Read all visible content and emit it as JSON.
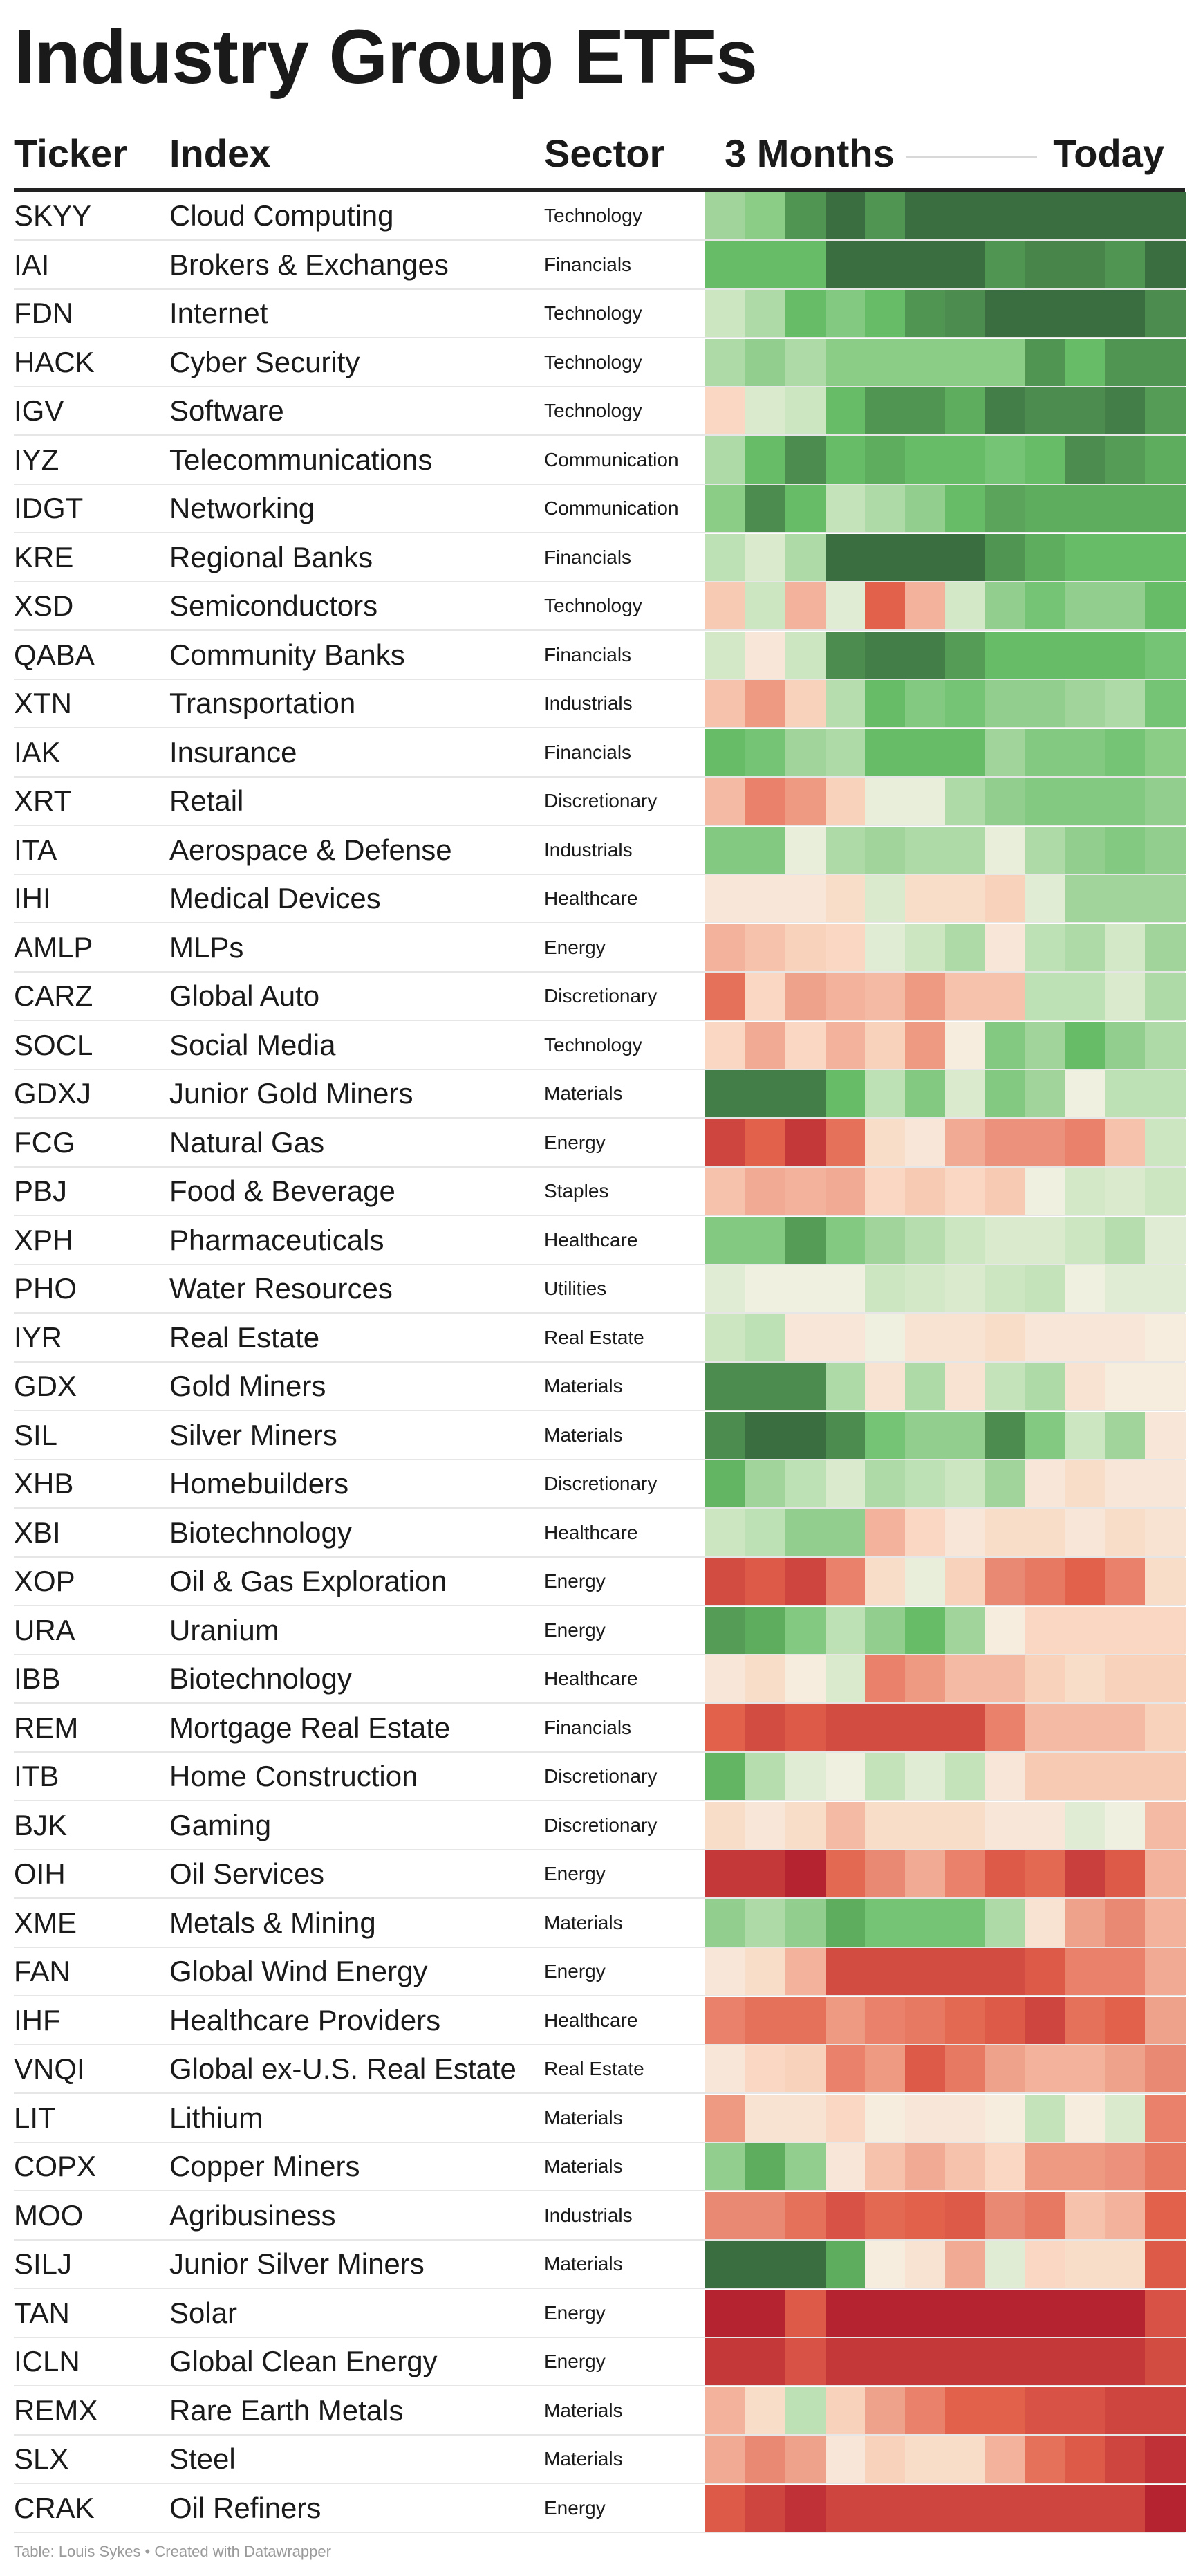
{
  "title": "Industry Group ETFs",
  "headers": {
    "ticker": "Ticker",
    "index": "Index",
    "sector": "Sector",
    "period_start": "3 Months",
    "period_end": "Today"
  },
  "note": "Table: Louis Sykes • Created with Datawrapper",
  "color_scale": {
    "strong_green": "#3a6d3f",
    "green": "#67bd67",
    "light_green": "#cbe6c1",
    "neutral": "#f7f2e6",
    "light_red": "#f9d2bb",
    "red": "#e2614b",
    "strong_red": "#b01c2e"
  },
  "chart_data": {
    "type": "heatmap",
    "title": "Industry Group ETFs",
    "columns": 12,
    "value_scale": "diverging: -3 (strong red) to +3 (strong green); values estimated from cell shading",
    "rows": [
      {
        "ticker": "SKYY",
        "index": "Cloud Computing",
        "sector": "Technology",
        "values": [
          1.2,
          1.5,
          2.5,
          3,
          2.5,
          3,
          3,
          3,
          3,
          3,
          3,
          3
        ]
      },
      {
        "ticker": "IAI",
        "index": "Brokers & Exchanges",
        "sector": "Financials",
        "values": [
          2,
          2,
          2,
          3,
          3,
          3,
          3,
          2.5,
          2.7,
          2.7,
          2.5,
          3
        ]
      },
      {
        "ticker": "FDN",
        "index": "Internet",
        "sector": "Technology",
        "values": [
          0.6,
          1,
          2,
          1.6,
          2,
          2.5,
          2.6,
          3,
          3,
          3,
          3,
          2.6
        ]
      },
      {
        "ticker": "HACK",
        "index": "Cyber Security",
        "sector": "Technology",
        "values": [
          1,
          1.4,
          1,
          1.5,
          1.5,
          1.5,
          1.5,
          1.5,
          2.5,
          2,
          2.5,
          2.5
        ]
      },
      {
        "ticker": "IGV",
        "index": "Software",
        "sector": "Technology",
        "values": [
          -0.5,
          0.4,
          0.6,
          2,
          2.5,
          2.5,
          2.2,
          2.8,
          2.6,
          2.6,
          2.8,
          2.4
        ]
      },
      {
        "ticker": "IYZ",
        "index": "Telecommunications",
        "sector": "Communication",
        "values": [
          1,
          2,
          2.6,
          2,
          2.2,
          2,
          2,
          1.8,
          2,
          2.6,
          2.4,
          2.2
        ]
      },
      {
        "ticker": "IDGT",
        "index": "Networking",
        "sector": "Communication",
        "values": [
          1.5,
          2.6,
          2,
          0.7,
          1,
          1.4,
          2,
          2.3,
          2.2,
          2.2,
          2.2,
          2.2
        ]
      },
      {
        "ticker": "KRE",
        "index": "Regional Banks",
        "sector": "Financials",
        "values": [
          0.8,
          0.4,
          1,
          3,
          3,
          3,
          3,
          2.5,
          2.2,
          2,
          2,
          2
        ]
      },
      {
        "ticker": "XSD",
        "index": "Semiconductors",
        "sector": "Technology",
        "values": [
          -0.7,
          0.6,
          -1,
          0.3,
          -2,
          -1,
          0.5,
          1.4,
          1.8,
          1.4,
          1.4,
          2
        ]
      },
      {
        "ticker": "QABA",
        "index": "Community Banks",
        "sector": "Financials",
        "values": [
          0.5,
          -0.2,
          0.6,
          2.6,
          2.8,
          2.8,
          2.4,
          2,
          2,
          2,
          2,
          1.8
        ]
      },
      {
        "ticker": "XTN",
        "index": "Transportation",
        "sector": "Industrials",
        "values": [
          -0.8,
          -1.3,
          -0.6,
          0.9,
          2,
          1.6,
          1.8,
          1.4,
          1.4,
          1.2,
          1,
          1.8
        ]
      },
      {
        "ticker": "IAK",
        "index": "Insurance",
        "sector": "Financials",
        "values": [
          2,
          1.8,
          1.2,
          1,
          2,
          2,
          2,
          1.2,
          1.6,
          1.6,
          1.8,
          1.5
        ]
      },
      {
        "ticker": "XRT",
        "index": "Retail",
        "sector": "Discretionary",
        "values": [
          -0.9,
          -1.6,
          -1.3,
          -0.6,
          0.2,
          0.2,
          1,
          1.4,
          1.6,
          1.6,
          1.6,
          1.4
        ]
      },
      {
        "ticker": "ITA",
        "index": "Aerospace & Defense",
        "sector": "Industrials",
        "values": [
          1.6,
          1.6,
          0.2,
          1,
          1.2,
          1,
          1,
          0.2,
          1,
          1.4,
          1.6,
          1.4
        ]
      },
      {
        "ticker": "IHI",
        "index": "Medical Devices",
        "sector": "Healthcare",
        "values": [
          -0.2,
          -0.2,
          -0.2,
          -0.4,
          0.4,
          -0.4,
          -0.4,
          -0.6,
          0.3,
          1.2,
          1.2,
          1.2
        ]
      },
      {
        "ticker": "AMLP",
        "index": "MLPs",
        "sector": "Energy",
        "values": [
          -1,
          -0.8,
          -0.6,
          -0.5,
          0.3,
          0.6,
          1,
          -0.2,
          0.8,
          1,
          0.5,
          1.2
        ]
      },
      {
        "ticker": "CARZ",
        "index": "Global Auto",
        "sector": "Discretionary",
        "values": [
          -1.8,
          -0.5,
          -1.2,
          -1,
          -0.9,
          -1.3,
          -0.8,
          -0.8,
          0.8,
          0.8,
          0.4,
          1
        ]
      },
      {
        "ticker": "SOCL",
        "index": "Social Media",
        "sector": "Technology",
        "values": [
          -0.5,
          -1.1,
          -0.5,
          -1,
          -0.6,
          -1.3,
          -0.1,
          1.6,
          1.2,
          2,
          1.4,
          1
        ]
      },
      {
        "ticker": "GDXJ",
        "index": "Junior Gold Miners",
        "sector": "Materials",
        "values": [
          2.8,
          2.8,
          2.8,
          2,
          0.8,
          1.6,
          0.4,
          1.6,
          1.2,
          0.1,
          0.8,
          0.8
        ]
      },
      {
        "ticker": "FCG",
        "index": "Natural Gas",
        "sector": "Energy",
        "values": [
          -2.4,
          -2,
          -2.6,
          -1.8,
          -0.4,
          -0.2,
          -1.1,
          -1.4,
          -1.4,
          -1.6,
          -0.8,
          0.6
        ]
      },
      {
        "ticker": "PBJ",
        "index": "Food & Beverage",
        "sector": "Staples",
        "values": [
          -0.8,
          -1.1,
          -1,
          -1.1,
          -0.5,
          -0.7,
          -0.5,
          -0.7,
          0.1,
          0.5,
          0.4,
          0.6
        ]
      },
      {
        "ticker": "XPH",
        "index": "Pharmaceuticals",
        "sector": "Healthcare",
        "values": [
          1.6,
          1.6,
          2.4,
          1.6,
          1.2,
          0.9,
          0.6,
          0.4,
          0.4,
          0.6,
          0.9,
          0.3
        ]
      },
      {
        "ticker": "PHO",
        "index": "Water Resources",
        "sector": "Utilities",
        "values": [
          0.3,
          0.1,
          0.1,
          0.1,
          0.6,
          0.5,
          0.4,
          0.6,
          0.7,
          0.1,
          0.3,
          0.3
        ]
      },
      {
        "ticker": "IYR",
        "index": "Real Estate",
        "sector": "Real Estate",
        "values": [
          0.6,
          0.8,
          -0.2,
          -0.2,
          0.1,
          -0.3,
          -0.3,
          -0.4,
          -0.2,
          -0.2,
          -0.2,
          -0.1
        ]
      },
      {
        "ticker": "GDX",
        "index": "Gold Miners",
        "sector": "Materials",
        "values": [
          2.6,
          2.6,
          2.6,
          1,
          -0.3,
          1,
          -0.3,
          0.7,
          1,
          -0.3,
          -0.1,
          -0.1
        ]
      },
      {
        "ticker": "SIL",
        "index": "Silver Miners",
        "sector": "Materials",
        "values": [
          2.6,
          3,
          3,
          2.6,
          1.8,
          1.4,
          1.4,
          2.6,
          1.6,
          0.6,
          1.2,
          -0.2
        ]
      },
      {
        "ticker": "XHB",
        "index": "Homebuilders",
        "sector": "Discretionary",
        "values": [
          2.1,
          1.2,
          0.8,
          0.4,
          1,
          0.8,
          0.6,
          1.2,
          -0.2,
          -0.4,
          -0.2,
          -0.2
        ]
      },
      {
        "ticker": "XBI",
        "index": "Biotechnology",
        "sector": "Healthcare",
        "values": [
          0.6,
          0.8,
          1.4,
          1.4,
          -1,
          -0.5,
          -0.2,
          -0.4,
          -0.4,
          -0.2,
          -0.4,
          -0.3
        ]
      },
      {
        "ticker": "XOP",
        "index": "Oil & Gas Exploration",
        "sector": "Energy",
        "values": [
          -2.3,
          -2.1,
          -2.4,
          -1.6,
          -0.4,
          0.2,
          -0.6,
          -1.5,
          -1.7,
          -2,
          -1.6,
          -0.4
        ]
      },
      {
        "ticker": "URA",
        "index": "Uranium",
        "sector": "Energy",
        "values": [
          2.4,
          2.2,
          1.6,
          0.8,
          1.4,
          2,
          1.2,
          -0.1,
          -0.5,
          -0.5,
          -0.5,
          -0.5
        ]
      },
      {
        "ticker": "IBB",
        "index": "Biotechnology",
        "sector": "Healthcare",
        "values": [
          -0.2,
          -0.4,
          -0.1,
          0.4,
          -1.6,
          -1.3,
          -0.9,
          -0.9,
          -0.6,
          -0.4,
          -0.6,
          -0.6
        ]
      },
      {
        "ticker": "REM",
        "index": "Mortgage Real Estate",
        "sector": "Financials",
        "values": [
          -2,
          -2.3,
          -2.1,
          -2.3,
          -2.3,
          -2.3,
          -2.3,
          -1.6,
          -0.9,
          -0.9,
          -0.9,
          -0.6
        ]
      },
      {
        "ticker": "ITB",
        "index": "Home Construction",
        "sector": "Discretionary",
        "values": [
          2.1,
          0.9,
          0.3,
          0.1,
          0.7,
          0.3,
          0.7,
          -0.2,
          -0.7,
          -0.7,
          -0.7,
          -0.7
        ]
      },
      {
        "ticker": "BJK",
        "index": "Gaming",
        "sector": "Discretionary",
        "values": [
          -0.4,
          -0.2,
          -0.4,
          -0.9,
          -0.4,
          -0.4,
          -0.4,
          -0.2,
          -0.2,
          0.3,
          0.1,
          -0.9
        ]
      },
      {
        "ticker": "OIH",
        "index": "Oil Services",
        "sector": "Energy",
        "values": [
          -2.6,
          -2.6,
          -2.9,
          -1.9,
          -1.5,
          -1.1,
          -1.6,
          -2.1,
          -1.9,
          -2.5,
          -2.1,
          -1
        ]
      },
      {
        "ticker": "XME",
        "index": "Metals & Mining",
        "sector": "Materials",
        "values": [
          1.4,
          1,
          1.4,
          2.2,
          1.8,
          1.8,
          1.8,
          1,
          -0.3,
          -1.2,
          -1.5,
          -1
        ]
      },
      {
        "ticker": "FAN",
        "index": "Global Wind Energy",
        "sector": "Energy",
        "values": [
          -0.2,
          -0.4,
          -1,
          -2.3,
          -2.3,
          -2.3,
          -2.3,
          -2.3,
          -2.1,
          -1.6,
          -1.6,
          -1.1
        ]
      },
      {
        "ticker": "IHF",
        "index": "Healthcare Providers",
        "sector": "Healthcare",
        "values": [
          -1.6,
          -1.8,
          -1.8,
          -1.3,
          -1.6,
          -1.7,
          -1.9,
          -2.1,
          -2.4,
          -1.8,
          -2,
          -1.2
        ]
      },
      {
        "ticker": "VNQI",
        "index": "Global ex-U.S. Real Estate",
        "sector": "Real Estate",
        "values": [
          -0.2,
          -0.5,
          -0.6,
          -1.6,
          -1.3,
          -2.1,
          -1.7,
          -1.2,
          -1,
          -1,
          -1.2,
          -1.5
        ]
      },
      {
        "ticker": "LIT",
        "index": "Lithium",
        "sector": "Materials",
        "values": [
          -1.3,
          -0.3,
          -0.3,
          -0.5,
          -0.1,
          -0.2,
          -0.2,
          -0.1,
          0.7,
          -0.1,
          0.4,
          -1.6
        ]
      },
      {
        "ticker": "COPX",
        "index": "Copper Miners",
        "sector": "Materials",
        "values": [
          1.4,
          2.2,
          1.4,
          -0.2,
          -0.8,
          -1.1,
          -0.8,
          -0.5,
          -1.3,
          -1.3,
          -1.4,
          -1.7
        ]
      },
      {
        "ticker": "MOO",
        "index": "Agribusiness",
        "sector": "Industrials",
        "values": [
          -1.5,
          -1.5,
          -1.8,
          -2.2,
          -1.9,
          -2,
          -2.1,
          -1.5,
          -1.7,
          -0.8,
          -1,
          -2
        ]
      },
      {
        "ticker": "SILJ",
        "index": "Junior Silver Miners",
        "sector": "Materials",
        "values": [
          3,
          3,
          3,
          2.2,
          -0.1,
          -0.3,
          -1.1,
          0.3,
          -0.5,
          -0.4,
          -0.4,
          -2.1
        ]
      },
      {
        "ticker": "TAN",
        "index": "Solar",
        "sector": "Energy",
        "values": [
          -2.9,
          -2.9,
          -2.1,
          -2.9,
          -2.9,
          -2.9,
          -2.9,
          -2.9,
          -2.9,
          -2.9,
          -2.9,
          -2.2
        ]
      },
      {
        "ticker": "ICLN",
        "index": "Global Clean Energy",
        "sector": "Energy",
        "values": [
          -2.6,
          -2.6,
          -2.2,
          -2.6,
          -2.6,
          -2.6,
          -2.6,
          -2.6,
          -2.6,
          -2.6,
          -2.6,
          -2.3
        ]
      },
      {
        "ticker": "REMX",
        "index": "Rare Earth Metals",
        "sector": "Materials",
        "values": [
          -1,
          -0.4,
          0.8,
          -0.6,
          -1.2,
          -1.6,
          -2,
          -2,
          -2.2,
          -2.2,
          -2.4,
          -2.4
        ]
      },
      {
        "ticker": "SLX",
        "index": "Steel",
        "sector": "Materials",
        "values": [
          -1.1,
          -1.5,
          -1.2,
          -0.2,
          -0.6,
          -0.4,
          -0.4,
          -1,
          -1.8,
          -2.1,
          -2.4,
          -2.7
        ]
      },
      {
        "ticker": "CRAK",
        "index": "Oil Refiners",
        "sector": "Energy",
        "values": [
          -2.1,
          -2.4,
          -2.7,
          -2.4,
          -2.4,
          -2.4,
          -2.4,
          -2.4,
          -2.4,
          -2.4,
          -2.4,
          -2.9
        ]
      }
    ]
  }
}
